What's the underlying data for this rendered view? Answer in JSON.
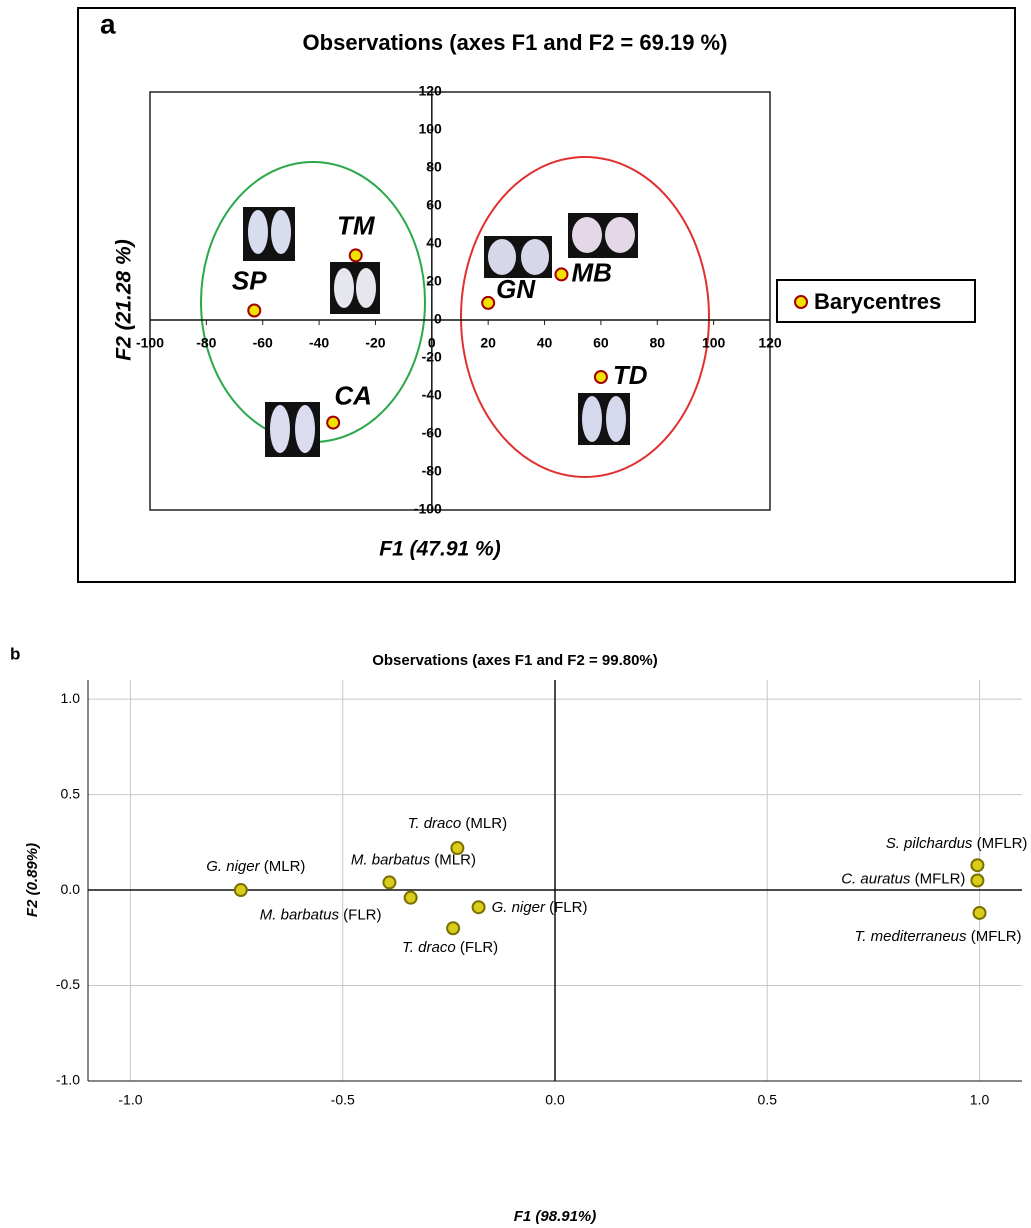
{
  "chart_data": [
    {
      "type": "scatter",
      "panel_label": "a",
      "title": "Observations (axes F1 and F2 = 69.19 %)",
      "x_label": "F1 (47.91 %)",
      "y_label": "F2 (21.28 %)",
      "xlim": [
        -100,
        120
      ],
      "ylim": [
        -100,
        120
      ],
      "xticks": [
        -100,
        -80,
        -60,
        -40,
        -20,
        0,
        20,
        40,
        60,
        80,
        100,
        120
      ],
      "yticks": [
        -100,
        -80,
        -60,
        -40,
        -20,
        0,
        20,
        40,
        60,
        80,
        100,
        120
      ],
      "grid": false,
      "series": [
        {
          "name": "Barycentres",
          "color": "#f2e200",
          "edge_color": "#a00000",
          "labels": [
            "SP",
            "TM",
            "CA",
            "GN",
            "MB",
            "TD"
          ],
          "x": [
            -63,
            -27,
            -35,
            20,
            46,
            60
          ],
          "values": [
            5,
            34,
            -54,
            9,
            24,
            -30
          ]
        }
      ]
    },
    {
      "type": "scatter",
      "panel_label": "b",
      "title": "Observations (axes F1 and F2 = 99.80%)",
      "x_label": "F1 (98.91%)",
      "y_label": "F2 (0.89%)",
      "xlim": [
        -1.1,
        1.1
      ],
      "ylim": [
        -1.0,
        1.1
      ],
      "xticks": [
        {
          "value": -1,
          "label": "-1.0"
        },
        -0.5,
        {
          "value": 0,
          "label": "0.0"
        },
        0.5,
        {
          "value": 1,
          "label": "1.0"
        }
      ],
      "yticks": [
        {
          "value": -1,
          "label": "-1.0"
        },
        -0.5,
        {
          "value": 0,
          "label": "0.0"
        },
        0.5,
        {
          "value": 1,
          "label": "1.0"
        }
      ],
      "grid": true,
      "series": [
        {
          "color": "#d9cc1a",
          "edge_color": "#7a7000",
          "species": [
            "G. niger",
            "M. barbatus",
            "M. barbatus",
            "T. draco",
            "T. draco",
            "G. niger",
            "S. pilchardus",
            "C. auratus",
            "T. mediterraneus"
          ],
          "groups": [
            "(MLR)",
            "(MLR)",
            "(FLR)",
            "(MLR)",
            "(FLR)",
            "(FLR)",
            "(MFLR)",
            "(MFLR)",
            "(MFLR)"
          ],
          "x": [
            -0.74,
            -0.39,
            -0.34,
            -0.23,
            -0.24,
            -0.18,
            0.995,
            0.995,
            1.0
          ],
          "values": [
            0,
            0.04,
            -0.04,
            0.22,
            -0.2,
            -0.09,
            0.13,
            0.05,
            -0.12
          ]
        }
      ]
    }
  ]
}
